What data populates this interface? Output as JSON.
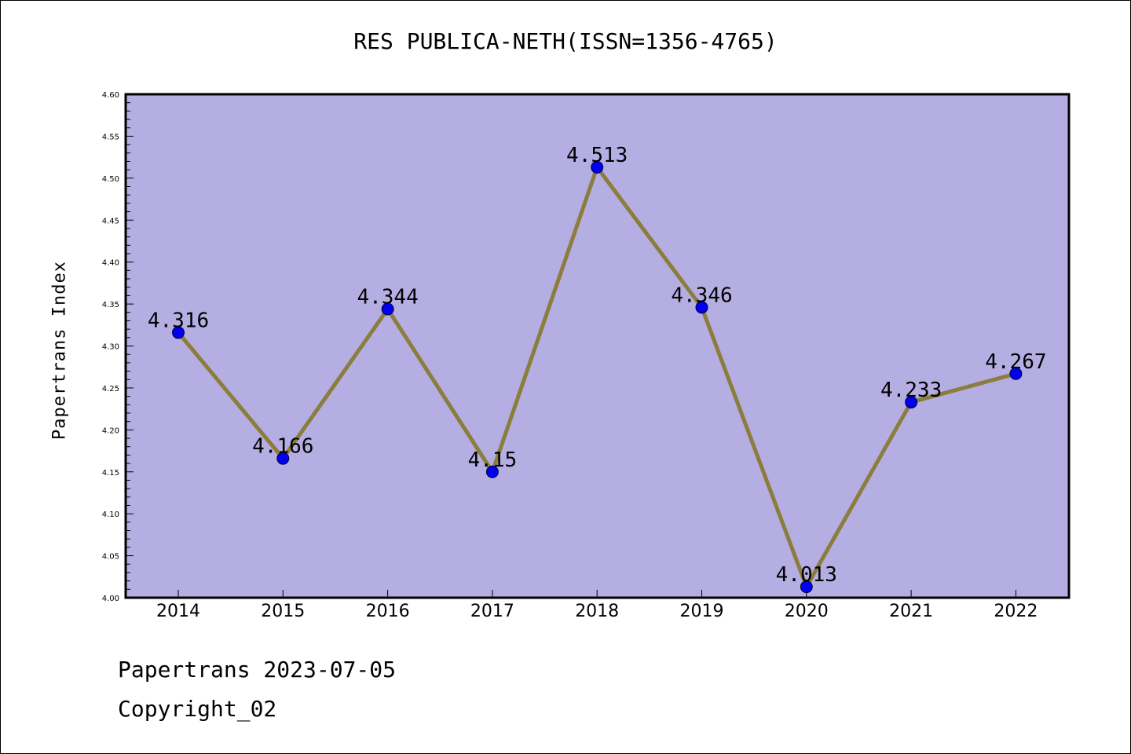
{
  "chart_data": {
    "type": "line",
    "title": "RES PUBLICA-NETH(ISSN=1356-4765)",
    "xlabel": "",
    "ylabel": "Papertrans Index",
    "categories": [
      "2014",
      "2015",
      "2016",
      "2017",
      "2018",
      "2019",
      "2020",
      "2021",
      "2022"
    ],
    "series": [
      {
        "values": [
          4.316,
          4.166,
          4.344,
          4.15,
          4.513,
          4.346,
          4.013,
          4.233,
          4.267
        ],
        "labels": [
          "4.316",
          "4.166",
          "4.344",
          "4.15",
          "4.513",
          "4.346",
          "4.013",
          "4.233",
          "4.267"
        ]
      }
    ],
    "ylim": [
      4.0,
      4.6
    ],
    "yticks": [
      "4.00",
      "4.05",
      "4.10",
      "4.15",
      "4.20",
      "4.25",
      "4.30",
      "4.35",
      "4.40",
      "4.45",
      "4.50",
      "4.55",
      "4.60"
    ],
    "grid": false,
    "legend": "none",
    "colors": {
      "plot_background": "#b5aee2",
      "line": "#8b7d3c",
      "marker": "#0000ee"
    }
  },
  "footer": {
    "line1": "Papertrans 2023-07-05",
    "line2": "Copyright_02"
  }
}
